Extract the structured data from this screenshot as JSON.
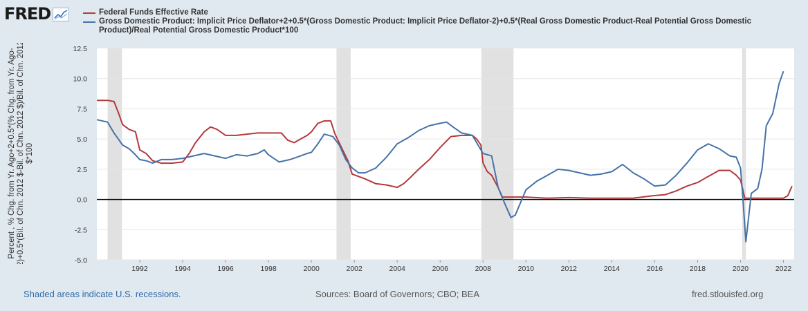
{
  "header": {
    "logo_text": "FRED",
    "logo_icon": "fred-chart-icon"
  },
  "footer": {
    "recession_note": "Shaded areas indicate U.S. recessions.",
    "sources": "Sources: Board of Governors; CBO; BEA",
    "site": "fred.stlouisfed.org"
  },
  "chart_data": {
    "type": "line",
    "ylabel_lines": [
      "Percent , % Chg. from Yr. Ago+2+0.5*(% Chg. from Yr. Ago-",
      "2)+0.5*(Bil. of Chn. 2012 $-Bil. of Chn. 2012 $)/Bil. of Chn. 2012",
      "$*100"
    ],
    "xlim": [
      1990.0,
      2022.5
    ],
    "ylim": [
      -5.0,
      12.5
    ],
    "yticks": [
      -5.0,
      -2.5,
      0.0,
      2.5,
      5.0,
      7.5,
      10.0,
      12.5
    ],
    "ytick_labels": [
      "-5.0",
      "-2.5",
      "0.0",
      "2.5",
      "5.0",
      "7.5",
      "10.0",
      "12.5"
    ],
    "xticks": [
      1992,
      1994,
      1996,
      1998,
      2000,
      2002,
      2004,
      2006,
      2008,
      2010,
      2012,
      2014,
      2016,
      2018,
      2020,
      2022
    ],
    "xtick_labels": [
      "1992",
      "1994",
      "1996",
      "1998",
      "2000",
      "2002",
      "2004",
      "2006",
      "2008",
      "2010",
      "2012",
      "2014",
      "2016",
      "2018",
      "2020",
      "2022"
    ],
    "grid": true,
    "recessions": [
      [
        1990.5,
        1991.17
      ],
      [
        2001.17,
        2001.83
      ],
      [
        2007.92,
        2009.42
      ],
      [
        2020.08,
        2020.25
      ]
    ],
    "series": [
      {
        "name": "Federal Funds Effective Rate",
        "color": "#b3393b",
        "x": [
          1990.0,
          1990.5,
          1990.8,
          1991.0,
          1991.2,
          1991.5,
          1991.8,
          1992.0,
          1992.3,
          1992.6,
          1993.0,
          1993.5,
          1994.0,
          1994.3,
          1994.6,
          1995.0,
          1995.3,
          1995.6,
          1996.0,
          1996.5,
          1997.0,
          1997.5,
          1998.0,
          1998.6,
          1998.9,
          1999.2,
          1999.5,
          1999.8,
          2000.0,
          2000.3,
          2000.6,
          2000.9,
          2001.1,
          2001.4,
          2001.7,
          2001.9,
          2002.5,
          2003.0,
          2003.5,
          2004.0,
          2004.3,
          2004.6,
          2005.0,
          2005.5,
          2006.0,
          2006.5,
          2007.0,
          2007.5,
          2007.7,
          2007.9,
          2008.0,
          2008.2,
          2008.4,
          2008.7,
          2008.9,
          2009.0,
          2010.0,
          2011.0,
          2012.0,
          2013.0,
          2014.0,
          2015.0,
          2015.9,
          2016.5,
          2017.0,
          2017.5,
          2018.0,
          2018.5,
          2019.0,
          2019.5,
          2019.8,
          2020.0,
          2020.2,
          2020.5,
          2021.0,
          2021.5,
          2022.0,
          2022.2,
          2022.4
        ],
        "values": [
          8.2,
          8.2,
          8.1,
          7.2,
          6.2,
          5.8,
          5.6,
          4.1,
          3.8,
          3.2,
          3.0,
          3.0,
          3.1,
          3.8,
          4.7,
          5.6,
          6.0,
          5.8,
          5.3,
          5.3,
          5.4,
          5.5,
          5.5,
          5.5,
          4.9,
          4.7,
          5.0,
          5.3,
          5.6,
          6.3,
          6.5,
          6.5,
          5.4,
          4.3,
          3.2,
          2.1,
          1.7,
          1.3,
          1.2,
          1.0,
          1.3,
          1.8,
          2.5,
          3.3,
          4.3,
          5.2,
          5.3,
          5.3,
          5.0,
          4.5,
          3.0,
          2.3,
          2.0,
          1.0,
          0.2,
          0.2,
          0.2,
          0.1,
          0.15,
          0.1,
          0.1,
          0.1,
          0.3,
          0.4,
          0.7,
          1.1,
          1.4,
          1.9,
          2.4,
          2.4,
          2.0,
          1.6,
          0.1,
          0.1,
          0.1,
          0.1,
          0.1,
          0.3,
          1.1
        ]
      },
      {
        "name": "Gross Domestic Product: Implicit Price Deflator+2+0.5*(Gross Domestic Product: Implicit Price Deflator-2)+0.5*(Real Gross Domestic Product-Real Potential Gross Domestic Product)/Real Potential Gross Domestic Product*100",
        "color": "#4572a7",
        "x": [
          1990.0,
          1990.5,
          1990.8,
          1991.0,
          1991.2,
          1991.5,
          1991.8,
          1992.0,
          1992.3,
          1992.6,
          1993.0,
          1993.5,
          1994.0,
          1994.5,
          1995.0,
          1995.5,
          1996.0,
          1996.5,
          1997.0,
          1997.5,
          1997.8,
          1998.0,
          1998.5,
          1999.0,
          1999.5,
          1999.8,
          2000.0,
          2000.3,
          2000.6,
          2001.0,
          2001.3,
          2001.6,
          2001.9,
          2002.2,
          2002.5,
          2003.0,
          2003.5,
          2004.0,
          2004.5,
          2005.0,
          2005.5,
          2006.0,
          2006.3,
          2006.6,
          2007.0,
          2007.5,
          2008.0,
          2008.4,
          2008.7,
          2009.0,
          2009.3,
          2009.5,
          2010.0,
          2010.5,
          2011.0,
          2011.5,
          2012.0,
          2012.5,
          2013.0,
          2013.5,
          2014.0,
          2014.5,
          2015.0,
          2015.5,
          2016.0,
          2016.5,
          2017.0,
          2017.5,
          2018.0,
          2018.5,
          2019.0,
          2019.5,
          2019.8,
          2020.0,
          2020.1,
          2020.25,
          2020.5,
          2020.8,
          2021.0,
          2021.2,
          2021.5,
          2021.8,
          2022.0
        ],
        "values": [
          6.6,
          6.4,
          5.5,
          5.0,
          4.5,
          4.2,
          3.7,
          3.3,
          3.2,
          3.0,
          3.3,
          3.3,
          3.4,
          3.6,
          3.8,
          3.6,
          3.4,
          3.7,
          3.6,
          3.8,
          4.1,
          3.7,
          3.1,
          3.3,
          3.6,
          3.8,
          3.9,
          4.6,
          5.4,
          5.2,
          4.5,
          3.3,
          2.6,
          2.2,
          2.2,
          2.6,
          3.5,
          4.6,
          5.1,
          5.7,
          6.1,
          6.3,
          6.4,
          6.0,
          5.5,
          5.3,
          3.8,
          3.6,
          1.0,
          -0.3,
          -1.5,
          -1.3,
          0.8,
          1.5,
          2.0,
          2.5,
          2.4,
          2.2,
          2.0,
          2.1,
          2.3,
          2.9,
          2.2,
          1.7,
          1.1,
          1.2,
          2.0,
          3.0,
          4.1,
          4.6,
          4.2,
          3.6,
          3.5,
          2.6,
          0.3,
          -3.5,
          0.5,
          0.9,
          2.5,
          6.1,
          7.1,
          9.6,
          10.6
        ]
      }
    ]
  }
}
